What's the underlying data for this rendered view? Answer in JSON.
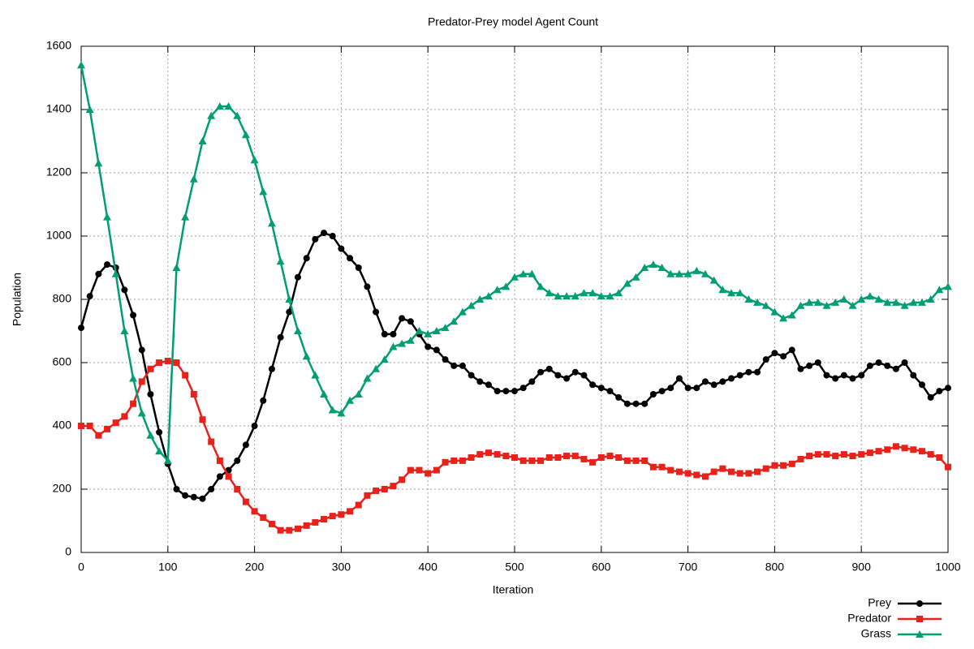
{
  "chart_data": {
    "type": "line",
    "title": "Predator-Prey model Agent Count",
    "x_label": "Iteration",
    "y_label": "Population",
    "xlim": [
      0,
      1000
    ],
    "ylim": [
      0,
      1600
    ],
    "xticks": [
      0,
      100,
      200,
      300,
      400,
      500,
      600,
      700,
      800,
      900,
      1000
    ],
    "yticks": [
      0,
      200,
      400,
      600,
      800,
      1000,
      1200,
      1400,
      1600
    ],
    "grid": true,
    "legend": "bottom-right",
    "x": [
      0,
      10,
      20,
      30,
      40,
      50,
      60,
      70,
      80,
      90,
      100,
      110,
      120,
      130,
      140,
      150,
      160,
      170,
      180,
      190,
      200,
      210,
      220,
      230,
      240,
      250,
      260,
      270,
      280,
      290,
      300,
      310,
      320,
      330,
      340,
      350,
      360,
      370,
      380,
      390,
      400,
      410,
      420,
      430,
      440,
      450,
      460,
      470,
      480,
      490,
      500,
      510,
      520,
      530,
      540,
      550,
      560,
      570,
      580,
      590,
      600,
      610,
      620,
      630,
      640,
      650,
      660,
      670,
      680,
      690,
      700,
      710,
      720,
      730,
      740,
      750,
      760,
      770,
      780,
      790,
      800,
      810,
      820,
      830,
      840,
      850,
      860,
      870,
      880,
      890,
      900,
      910,
      920,
      930,
      940,
      950,
      960,
      970,
      980,
      990,
      1000
    ],
    "series": [
      {
        "name": "Prey",
        "color": "#000000",
        "marker": "circle",
        "values": [
          710,
          810,
          880,
          910,
          900,
          830,
          750,
          640,
          500,
          380,
          280,
          200,
          180,
          175,
          170,
          200,
          240,
          260,
          290,
          340,
          400,
          480,
          580,
          680,
          760,
          870,
          930,
          990,
          1010,
          1000,
          960,
          930,
          900,
          840,
          760,
          690,
          690,
          740,
          730,
          690,
          650,
          640,
          610,
          590,
          590,
          560,
          540,
          530,
          510,
          510,
          510,
          520,
          540,
          570,
          580,
          560,
          550,
          570,
          560,
          530,
          520,
          510,
          490,
          470,
          470,
          470,
          500,
          510,
          520,
          550,
          520,
          520,
          540,
          530,
          540,
          550,
          560,
          570,
          570,
          610,
          630,
          620,
          640,
          580,
          590,
          600,
          560,
          550,
          560,
          550,
          560,
          590,
          600,
          590,
          580,
          600,
          560,
          530,
          490,
          510,
          520
        ]
      },
      {
        "name": "Predator",
        "color": "#e8221a",
        "marker": "square",
        "values": [
          400,
          400,
          370,
          390,
          410,
          430,
          470,
          540,
          580,
          600,
          605,
          600,
          560,
          500,
          420,
          350,
          290,
          240,
          200,
          160,
          130,
          110,
          90,
          70,
          70,
          75,
          85,
          95,
          105,
          115,
          120,
          130,
          150,
          180,
          195,
          200,
          210,
          230,
          260,
          260,
          250,
          260,
          285,
          290,
          290,
          300,
          310,
          315,
          310,
          305,
          300,
          290,
          290,
          290,
          300,
          300,
          305,
          305,
          295,
          285,
          300,
          305,
          300,
          290,
          290,
          290,
          270,
          270,
          260,
          255,
          250,
          245,
          240,
          255,
          265,
          255,
          250,
          250,
          255,
          265,
          275,
          275,
          280,
          295,
          305,
          310,
          310,
          305,
          310,
          305,
          310,
          315,
          320,
          325,
          335,
          330,
          325,
          320,
          310,
          300,
          270
        ]
      },
      {
        "name": "Grass",
        "color": "#009e73",
        "marker": "triangle",
        "values": [
          1540,
          1400,
          1230,
          1060,
          880,
          700,
          550,
          440,
          370,
          320,
          290,
          900,
          1060,
          1180,
          1300,
          1380,
          1410,
          1410,
          1380,
          1320,
          1240,
          1140,
          1040,
          920,
          800,
          700,
          620,
          560,
          500,
          450,
          440,
          480,
          500,
          550,
          580,
          610,
          650,
          660,
          670,
          700,
          690,
          700,
          710,
          730,
          760,
          780,
          800,
          810,
          830,
          840,
          870,
          880,
          880,
          840,
          820,
          810,
          810,
          810,
          820,
          820,
          810,
          810,
          820,
          850,
          870,
          900,
          910,
          900,
          880,
          880,
          880,
          890,
          880,
          860,
          830,
          820,
          820,
          800,
          790,
          780,
          760,
          740,
          750,
          780,
          790,
          790,
          780,
          790,
          800,
          780,
          800,
          810,
          800,
          790,
          790,
          780,
          790,
          790,
          800,
          830,
          840
        ]
      }
    ]
  }
}
